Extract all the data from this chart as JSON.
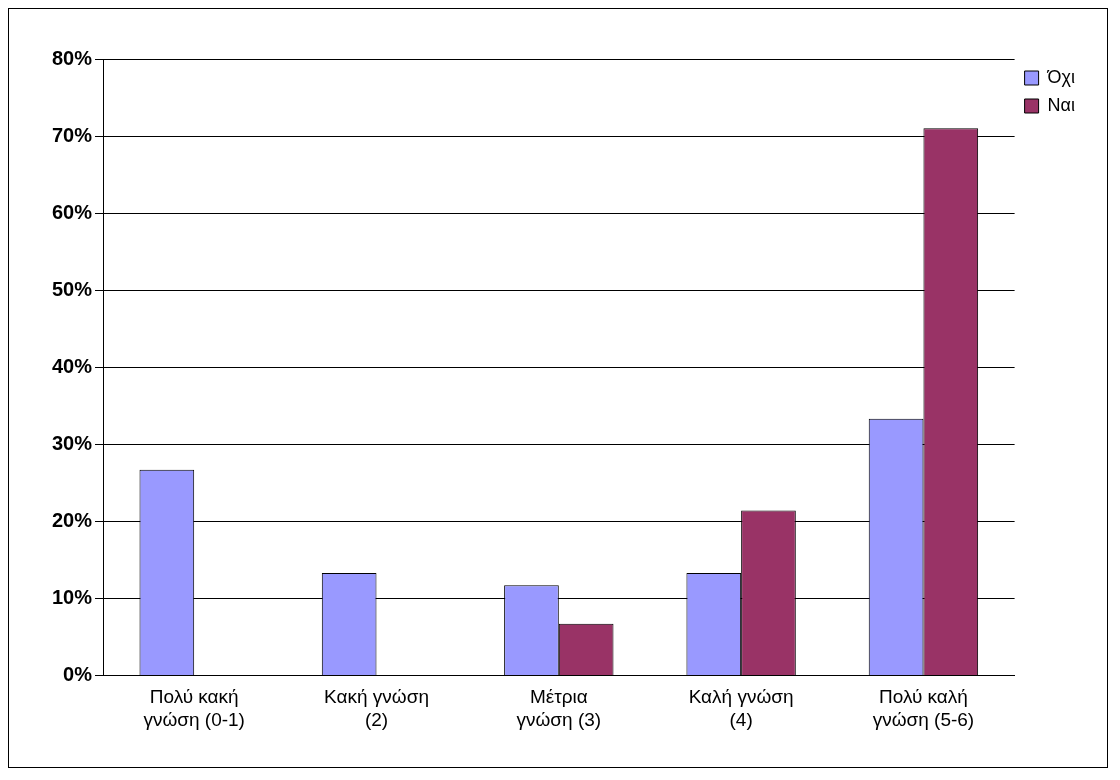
{
  "chart_data": {
    "type": "bar",
    "categories": [
      "Πολύ κακή γνώση (0-1)",
      "Κακή γνώση (2)",
      "Μέτρια γνώση (3)",
      "Καλή γνώση (4)",
      "Πολύ καλή γνώση (5-6)"
    ],
    "series": [
      {
        "name": "Όχι",
        "color": "#9999ff",
        "values": [
          26.7,
          13.3,
          11.7,
          13.3,
          33.3
        ]
      },
      {
        "name": "Ναι",
        "color": "#993366",
        "values": [
          0,
          0,
          6.7,
          21.4,
          71
        ]
      }
    ],
    "ylim": [
      0,
      80
    ],
    "yticks": [
      {
        "value": 0,
        "label": "0%"
      },
      {
        "value": 10,
        "label": "10%"
      },
      {
        "value": 20,
        "label": "20%"
      },
      {
        "value": 30,
        "label": "30%"
      },
      {
        "value": 40,
        "label": "40%"
      },
      {
        "value": 50,
        "label": "50%"
      },
      {
        "value": 60,
        "label": "60%"
      },
      {
        "value": 70,
        "label": "70%"
      },
      {
        "value": 80,
        "label": "80%"
      }
    ],
    "grid": "y",
    "legend": "top right"
  }
}
